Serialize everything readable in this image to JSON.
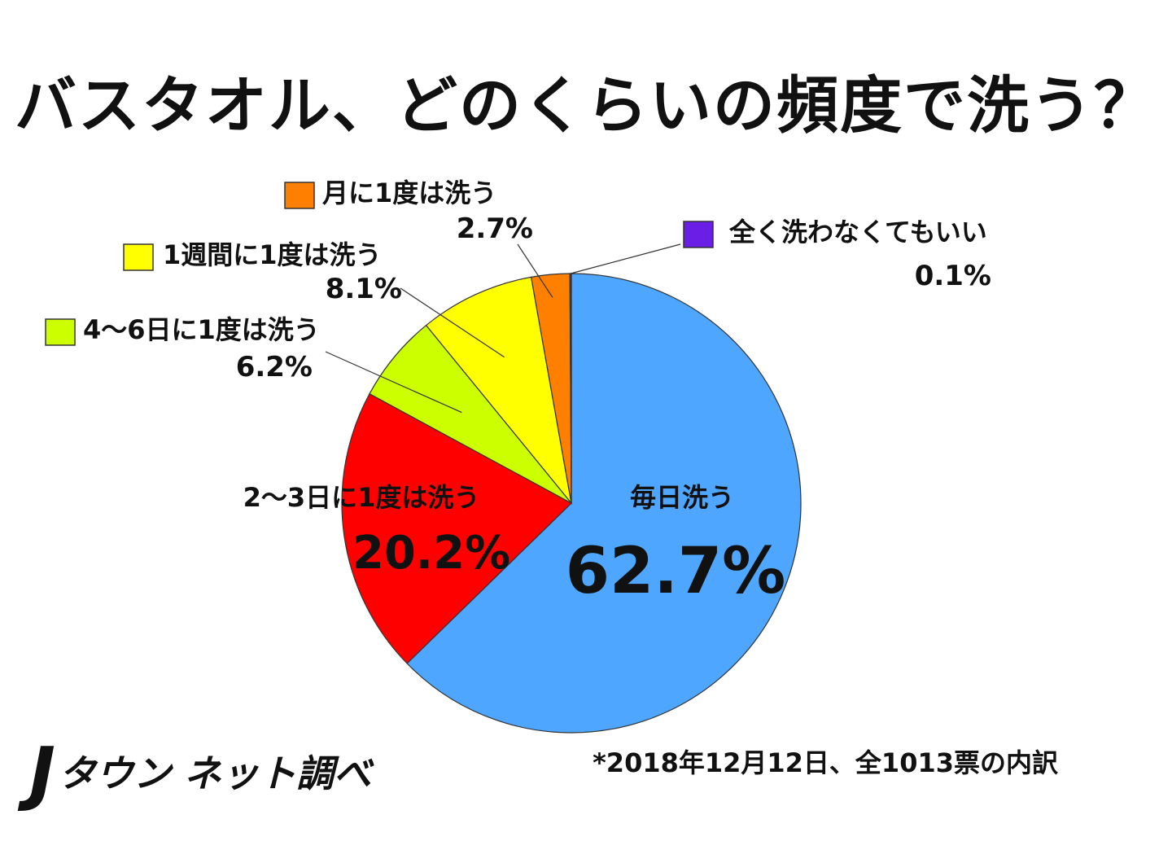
{
  "title": "バスタオル、どのくらいの頻度で洗う？",
  "brand": {
    "mark": "J",
    "text": "タウン ネット調べ"
  },
  "footnote": "*2018年12月12日、全1013票の内訳",
  "chart_data": {
    "type": "pie",
    "title": "バスタオル、どのくらいの頻度で洗う？",
    "slices": [
      {
        "label": "毎日洗う",
        "value": 62.7,
        "value_label": "62.7%",
        "color": "#4ea6ff"
      },
      {
        "label": "2〜3日に1度は洗う",
        "value": 20.2,
        "value_label": "20.2%",
        "color": "#ff0000"
      },
      {
        "label": "4〜6日に1度は洗う",
        "value": 6.2,
        "value_label": "6.2%",
        "color": "#ccff00"
      },
      {
        "label": "1週間に1度は洗う",
        "value": 8.1,
        "value_label": "8.1%",
        "color": "#ffff00"
      },
      {
        "label": "月に1度は洗う",
        "value": 2.7,
        "value_label": "2.7%",
        "color": "#ff8000"
      },
      {
        "label": "全く洗わなくてもいい",
        "value": 0.1,
        "value_label": "0.1%",
        "color": "#6a1ee6"
      }
    ],
    "order": "clockwise from top",
    "legend": "callouts"
  }
}
